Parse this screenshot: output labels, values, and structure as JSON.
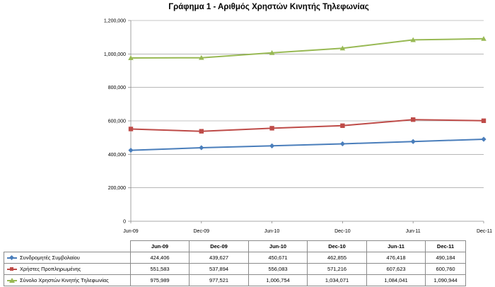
{
  "chart_data": {
    "type": "line",
    "title": "Γράφημα 1 - Αριθμός Χρηστών Κινητής Τηλεφωνίας",
    "categories": [
      "Jun-09",
      "Dec-09",
      "Jun-10",
      "Dec-10",
      "Jun-11",
      "Dec-11"
    ],
    "ylim": [
      0,
      1200000
    ],
    "yticks": [
      "0",
      "200,000",
      "400,000",
      "600,000",
      "800,000",
      "1,000,000",
      "1,200,000"
    ],
    "grid": true,
    "legend": "data-table-below",
    "series": [
      {
        "name": "Συνδρομητές Συμβολαίου",
        "color": "#4A7EBB",
        "marker": "diamond",
        "values": [
          424406,
          439627,
          450671,
          462855,
          476418,
          490184
        ],
        "labels": [
          "424,406",
          "439,627",
          "450,671",
          "462,855",
          "476,418",
          "490,184"
        ]
      },
      {
        "name": "Χρήστες Προπληρωμένης",
        "color": "#BE4B48",
        "marker": "square",
        "values": [
          551583,
          537894,
          556083,
          571216,
          607623,
          600760
        ],
        "labels": [
          "551,583",
          "537,894",
          "556,083",
          "571,216",
          "607,623",
          "600,760"
        ]
      },
      {
        "name": "Σύνολο Χρηστών Κινητής Τηλεφωνίας",
        "color": "#98B954",
        "marker": "triangle",
        "values": [
          975989,
          977521,
          1006754,
          1034071,
          1084041,
          1090944
        ],
        "labels": [
          "975,989",
          "977,521",
          "1,006,754",
          "1,034,071",
          "1,084,041",
          "1,090,944"
        ]
      }
    ]
  }
}
